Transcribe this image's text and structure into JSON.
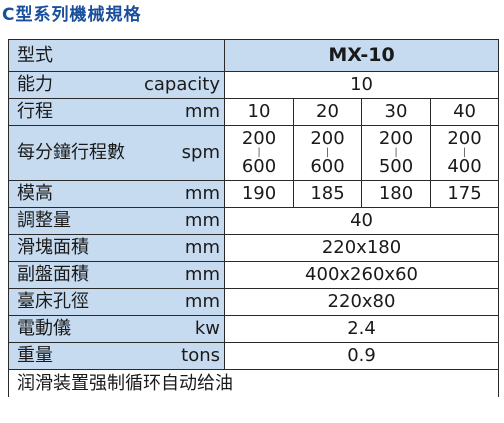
{
  "title": "C型系列機械規格",
  "header": {
    "label": "型式",
    "model": "MX-10"
  },
  "rows": {
    "capacity": {
      "name": "能力",
      "unit": "capacity",
      "value": "10"
    },
    "stroke": {
      "name": "行程",
      "unit": "mm",
      "values": [
        "10",
        "20",
        "30",
        "40"
      ]
    },
    "spm": {
      "name": "每分鐘行程數",
      "unit": "spm",
      "ranges": [
        {
          "top": "200",
          "bottom": "600"
        },
        {
          "top": "200",
          "bottom": "600"
        },
        {
          "top": "200",
          "bottom": "500"
        },
        {
          "top": "200",
          "bottom": "400"
        }
      ],
      "separator": "|"
    },
    "die_height": {
      "name": "模高",
      "unit": "mm",
      "values": [
        "190",
        "185",
        "180",
        "175"
      ]
    },
    "adjustment": {
      "name": "調整量",
      "unit": "mm",
      "value": "40"
    },
    "slide_area": {
      "name": "滑塊面積",
      "unit": "mm",
      "value": "220x180"
    },
    "bolster_area": {
      "name": "副盤面積",
      "unit": "mm",
      "value": "400x260x60"
    },
    "table_hole": {
      "name": "臺床孔徑",
      "unit": "mm",
      "value": "220x80"
    },
    "motor": {
      "name": "電動儀",
      "unit": "kw",
      "value": "2.4"
    },
    "weight": {
      "name": "重量",
      "unit": "tons",
      "value": "0.9"
    }
  },
  "note": "润滑装置强制循环自动给油",
  "colors": {
    "title": "#1a4f9c",
    "label_bg": "#c7dbf0",
    "border": "#2a2a2a"
  }
}
